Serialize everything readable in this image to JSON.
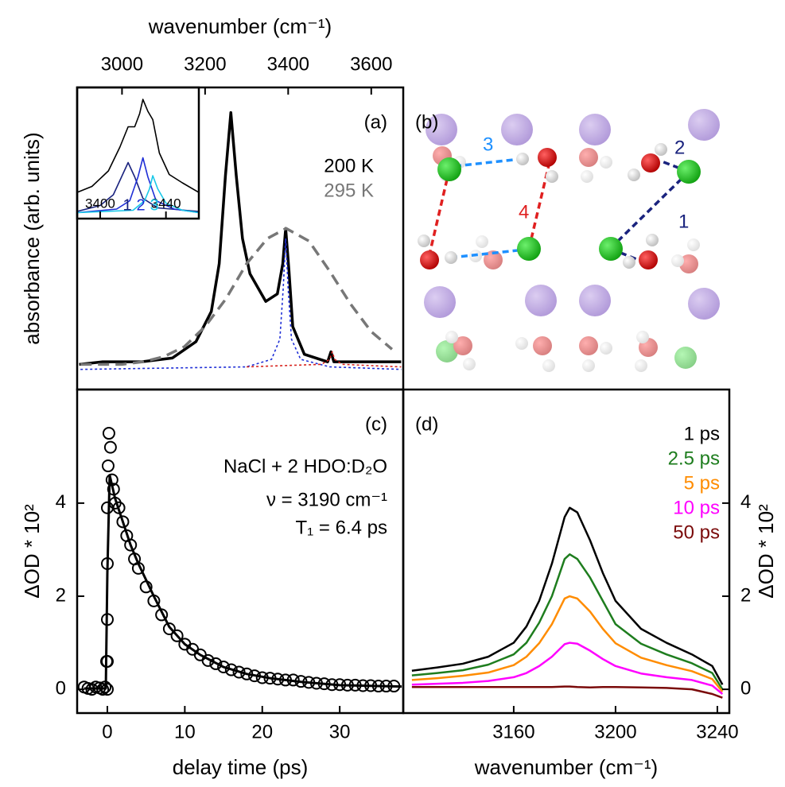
{
  "chart_data": [
    {
      "type": "line",
      "panel_label": "(a)",
      "xlabel": "wavenumber (cm⁻¹)",
      "ylabel": "absorbance (arb. units)",
      "xlim": [
        2892,
        3677
      ],
      "ylim": [
        -0.1,
        1.1
      ],
      "xticks": [
        3000,
        3200,
        3400,
        3600
      ],
      "xaxis": "top",
      "series": [
        {
          "name": "200 K",
          "color": "#000000",
          "dash": "solid",
          "linewidth": 3.5,
          "x": [
            2897,
            2953,
            3047,
            3121,
            3178,
            3215,
            3234,
            3249,
            3262,
            3275,
            3290,
            3308,
            3346,
            3374,
            3387,
            3394,
            3402,
            3411,
            3439,
            3495,
            3503,
            3510,
            3570,
            3645,
            3672
          ],
          "values": [
            0.0,
            0.01,
            0.01,
            0.025,
            0.09,
            0.21,
            0.4,
            0.75,
            1.0,
            0.75,
            0.5,
            0.36,
            0.25,
            0.28,
            0.4,
            0.54,
            0.37,
            0.15,
            0.04,
            0.01,
            0.05,
            0.01,
            0.01,
            0.01,
            0.01
          ]
        },
        {
          "name": "295 K",
          "color": "#777777",
          "dash": "dashed",
          "linewidth": 3.5,
          "x": [
            2900,
            2950,
            3000,
            3050,
            3100,
            3150,
            3200,
            3250,
            3300,
            3350,
            3395,
            3450,
            3500,
            3550,
            3600,
            3650
          ],
          "values": [
            0,
            0,
            0,
            0.01,
            0.03,
            0.07,
            0.15,
            0.26,
            0.4,
            0.5,
            0.54,
            0.49,
            0.37,
            0.24,
            0.13,
            0.06
          ]
        },
        {
          "color": "#1f2fd6",
          "dash": "dotted",
          "linewidth": 1.6,
          "x": [
            2900,
            3300,
            3360,
            3380,
            3388,
            3394,
            3400,
            3408,
            3430,
            3500,
            3672
          ],
          "values": [
            -0.02,
            -0.01,
            0.02,
            0.1,
            0.3,
            0.5,
            0.3,
            0.1,
            0.02,
            -0.01,
            -0.02
          ]
        },
        {
          "color": "#d8231e",
          "dash": "dotted",
          "linewidth": 1.6,
          "x": [
            3300,
            3480,
            3500,
            3506,
            3512,
            3530,
            3672
          ],
          "values": [
            -0.01,
            0.0,
            0.02,
            0.05,
            0.02,
            0.0,
            -0.01
          ]
        }
      ]
    },
    {
      "type": "line",
      "xlim": [
        3386,
        3460
      ],
      "ylim": [
        -0.05,
        1.05
      ],
      "xticks": [
        3400,
        3440
      ],
      "xaxis": "bottom",
      "series": [
        {
          "color": "#000000",
          "dash": "solid",
          "linewidth": 1.6,
          "x": [
            3386,
            3395,
            3405,
            3412,
            3417,
            3421,
            3424,
            3426,
            3429,
            3432,
            3436,
            3442,
            3450,
            3460
          ],
          "values": [
            0.17,
            0.22,
            0.35,
            0.55,
            0.72,
            0.72,
            0.83,
            0.95,
            0.85,
            0.78,
            0.5,
            0.32,
            0.25,
            0.17
          ]
        },
        {
          "name": "1",
          "color": "#1a237e",
          "dash": "solid",
          "linewidth": 1.6,
          "x": [
            3386,
            3400,
            3408,
            3413,
            3417,
            3421,
            3426,
            3435,
            3460
          ],
          "values": [
            0.01,
            0.06,
            0.15,
            0.3,
            0.42,
            0.3,
            0.12,
            0.04,
            0.01
          ]
        },
        {
          "name": "2",
          "color": "#1f2fd6",
          "dash": "solid",
          "linewidth": 1.6,
          "x": [
            3386,
            3410,
            3418,
            3423,
            3426,
            3429,
            3434,
            3445,
            3460
          ],
          "values": [
            0.0,
            0.03,
            0.1,
            0.3,
            0.46,
            0.3,
            0.1,
            0.03,
            0.0
          ]
        },
        {
          "name": "3",
          "color": "#19c8e8",
          "dash": "solid",
          "linewidth": 1.6,
          "x": [
            3386,
            3420,
            3427,
            3430,
            3432,
            3435,
            3440,
            3450,
            3460
          ],
          "values": [
            0,
            0.02,
            0.1,
            0.2,
            0.31,
            0.2,
            0.08,
            0.02,
            0.0
          ]
        }
      ]
    },
    {
      "type": "scatter",
      "panel_label": "(c)",
      "xlabel": "delay time (ps)",
      "ylabel": "ΔOD * 10²",
      "xlim": [
        -3.9,
        38.2
      ],
      "ylim": [
        -0.51,
        6.44
      ],
      "xticks": [
        0,
        10,
        20,
        30
      ],
      "yticks": [
        0,
        2,
        4
      ],
      "xaxis": "bottom",
      "yaxis": "left",
      "annotations": [
        "NaCl + 2 HDO:D₂O",
        "ν = 3190 cm⁻¹",
        "T₁ = 6.4 ps"
      ],
      "series": [
        {
          "kind": "points",
          "color": "#000000",
          "x": [
            -3,
            -2.5,
            -2,
            -1.5,
            -1,
            -0.6,
            -0.3,
            -0.1,
            0,
            0,
            0,
            0,
            0,
            0.1,
            0.2,
            0.4,
            0.6,
            0.8,
            1,
            1.5,
            2,
            2.5,
            3,
            3.5,
            4,
            5,
            6,
            7,
            8,
            9,
            10,
            11,
            12,
            13,
            14,
            15,
            16,
            17,
            18,
            19,
            20,
            21,
            22,
            23,
            24,
            25,
            26,
            27,
            28,
            29,
            30,
            31,
            32,
            33,
            34,
            35,
            36,
            37
          ],
          "values": [
            0.05,
            0.02,
            0.0,
            0.05,
            0.03,
            0.0,
            0.05,
            0.6,
            0.0,
            0.6,
            1.5,
            2.7,
            3.9,
            4.8,
            5.5,
            5.2,
            4.5,
            4.3,
            4.0,
            3.9,
            3.6,
            3.3,
            3.1,
            2.8,
            2.6,
            2.2,
            1.9,
            1.6,
            1.3,
            1.15,
            0.97,
            0.86,
            0.74,
            0.62,
            0.55,
            0.48,
            0.42,
            0.37,
            0.33,
            0.29,
            0.25,
            0.24,
            0.22,
            0.2,
            0.2,
            0.17,
            0.15,
            0.13,
            0.12,
            0.1,
            0.1,
            0.09,
            0.09,
            0.08,
            0.08,
            0.07,
            0.07,
            0.07
          ]
        },
        {
          "kind": "line",
          "color": "#000000",
          "dash": "solid",
          "linewidth": 3,
          "x": [
            -3,
            -0.2,
            0,
            0.3,
            1,
            2,
            3,
            4,
            6,
            8,
            10,
            12,
            15,
            18,
            21,
            25,
            30,
            35,
            38
          ],
          "values": [
            0.02,
            0.02,
            2.5,
            4.6,
            4.1,
            3.6,
            3.1,
            2.7,
            2.0,
            1.34,
            0.97,
            0.74,
            0.48,
            0.33,
            0.24,
            0.16,
            0.09,
            0.07,
            0.06
          ]
        }
      ]
    },
    {
      "type": "line",
      "panel_label": "(d)",
      "xlabel": "wavenumber (cm⁻¹)",
      "ylabel": "ΔOD * 10²",
      "xlim": [
        3116.6,
        3244.7
      ],
      "ylim": [
        -0.51,
        6.44
      ],
      "xticks": [
        3160,
        3200,
        3240
      ],
      "yticks": [
        0,
        2,
        4
      ],
      "xaxis": "bottom",
      "yaxis": "right",
      "series": [
        {
          "name": "1 ps",
          "color": "#000000",
          "dash": "solid",
          "linewidth": 2.5,
          "x": [
            3120,
            3130,
            3140,
            3150,
            3160,
            3165,
            3170,
            3175,
            3180,
            3182,
            3185,
            3190,
            3195,
            3200,
            3210,
            3220,
            3230,
            3238,
            3242
          ],
          "values": [
            0.4,
            0.47,
            0.55,
            0.7,
            1.0,
            1.35,
            1.9,
            2.7,
            3.7,
            3.9,
            3.8,
            3.2,
            2.5,
            1.9,
            1.3,
            1.0,
            0.75,
            0.5,
            0.1
          ]
        },
        {
          "name": "2.5 ps",
          "color": "#1e7d1e",
          "dash": "solid",
          "linewidth": 2.5,
          "x": [
            3120,
            3130,
            3140,
            3150,
            3160,
            3165,
            3170,
            3175,
            3180,
            3182,
            3185,
            3190,
            3195,
            3200,
            3210,
            3220,
            3230,
            3238,
            3242
          ],
          "values": [
            0.3,
            0.35,
            0.41,
            0.53,
            0.75,
            1.0,
            1.43,
            2.0,
            2.8,
            2.9,
            2.8,
            2.4,
            1.9,
            1.4,
            0.98,
            0.75,
            0.56,
            0.35,
            0.0
          ]
        },
        {
          "name": "5 ps",
          "color": "#ff8c00",
          "dash": "solid",
          "linewidth": 2.5,
          "x": [
            3120,
            3130,
            3140,
            3150,
            3160,
            3165,
            3170,
            3175,
            3180,
            3182,
            3185,
            3190,
            3195,
            3200,
            3210,
            3220,
            3230,
            3238,
            3242
          ],
          "values": [
            0.2,
            0.24,
            0.29,
            0.36,
            0.52,
            0.7,
            0.99,
            1.4,
            1.95,
            2.0,
            1.95,
            1.67,
            1.3,
            0.99,
            0.68,
            0.52,
            0.39,
            0.22,
            -0.05
          ]
        },
        {
          "name": "10 ps",
          "color": "#ff00ff",
          "dash": "solid",
          "linewidth": 2.5,
          "x": [
            3120,
            3130,
            3140,
            3150,
            3160,
            3165,
            3170,
            3175,
            3180,
            3182,
            3185,
            3190,
            3195,
            3200,
            3210,
            3220,
            3230,
            3238,
            3242
          ],
          "values": [
            0.1,
            0.12,
            0.14,
            0.18,
            0.26,
            0.35,
            0.5,
            0.7,
            0.97,
            1.0,
            0.98,
            0.83,
            0.65,
            0.5,
            0.34,
            0.26,
            0.2,
            0.08,
            -0.1
          ]
        },
        {
          "name": "50 ps",
          "color": "#7a0a0a",
          "dash": "solid",
          "linewidth": 2.5,
          "x": [
            3120,
            3130,
            3140,
            3150,
            3160,
            3165,
            3170,
            3175,
            3180,
            3182,
            3185,
            3190,
            3195,
            3200,
            3210,
            3220,
            3230,
            3238,
            3242
          ],
          "values": [
            0.05,
            0.05,
            0.05,
            0.05,
            0.05,
            0.05,
            0.05,
            0.05,
            0.06,
            0.06,
            0.05,
            0.04,
            0.05,
            0.05,
            0.04,
            0.03,
            0.0,
            -0.1,
            -0.18
          ]
        }
      ]
    }
  ],
  "diagram": {
    "panel_label": "(b)",
    "bond_labels": [
      "1",
      "2",
      "3",
      "4"
    ]
  }
}
